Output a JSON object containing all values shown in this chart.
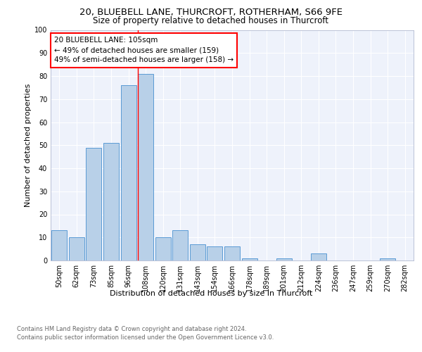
{
  "title1": "20, BLUEBELL LANE, THURCROFT, ROTHERHAM, S66 9FE",
  "title2": "Size of property relative to detached houses in Thurcroft",
  "xlabel": "Distribution of detached houses by size in Thurcroft",
  "ylabel": "Number of detached properties",
  "footnote": "Contains HM Land Registry data © Crown copyright and database right 2024.\nContains public sector information licensed under the Open Government Licence v3.0.",
  "categories": [
    "50sqm",
    "62sqm",
    "73sqm",
    "85sqm",
    "96sqm",
    "108sqm",
    "120sqm",
    "131sqm",
    "143sqm",
    "154sqm",
    "166sqm",
    "178sqm",
    "189sqm",
    "201sqm",
    "212sqm",
    "224sqm",
    "236sqm",
    "247sqm",
    "259sqm",
    "270sqm",
    "282sqm"
  ],
  "values": [
    13,
    10,
    49,
    51,
    76,
    81,
    10,
    13,
    7,
    6,
    6,
    1,
    0,
    1,
    0,
    3,
    0,
    0,
    0,
    1,
    0
  ],
  "bar_color": "#b8d0e8",
  "bar_edge_color": "#5b9bd5",
  "annotation_text": "20 BLUEBELL LANE: 105sqm\n← 49% of detached houses are smaller (159)\n49% of semi-detached houses are larger (158) →",
  "annotation_box_color": "white",
  "annotation_box_edge_color": "red",
  "vline_color": "red",
  "vline_index": 5,
  "ylim": [
    0,
    100
  ],
  "yticks": [
    0,
    10,
    20,
    30,
    40,
    50,
    60,
    70,
    80,
    90,
    100
  ],
  "plot_bg_color": "#eef2fb",
  "grid_color": "white",
  "title1_fontsize": 9.5,
  "title2_fontsize": 8.5,
  "ylabel_fontsize": 8,
  "xlabel_fontsize": 8,
  "tick_fontsize": 7,
  "footnote_fontsize": 6,
  "annotation_fontsize": 7.5
}
